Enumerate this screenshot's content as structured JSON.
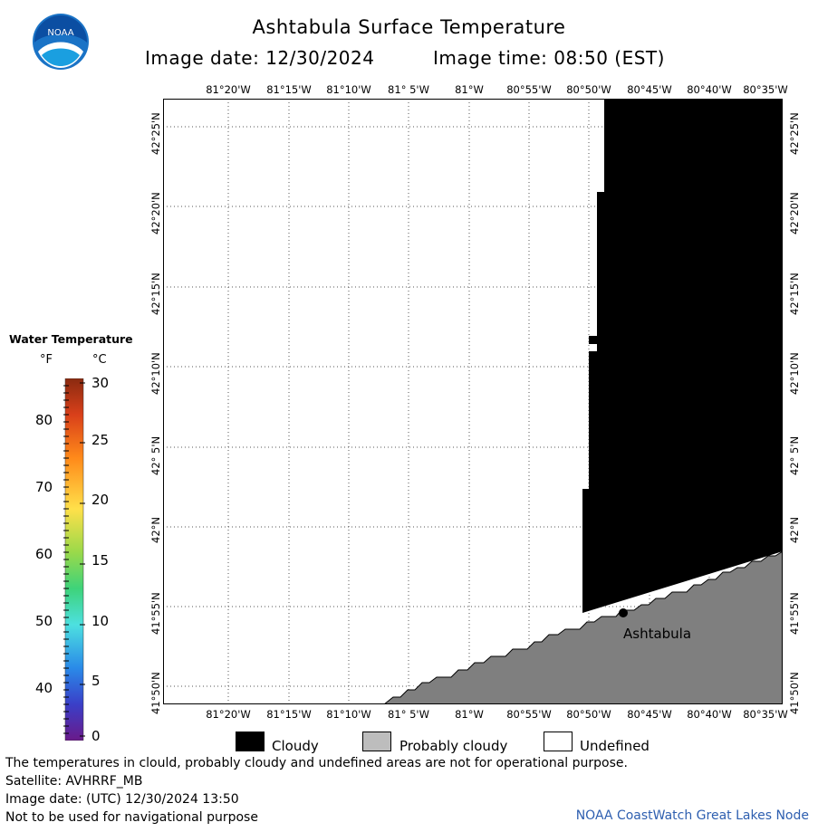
{
  "header": {
    "title": "Ashtabula Surface Temperature",
    "image_date_label": "Image date: 12/30/2024",
    "image_time_label": "Image time: 08:50 (EST)"
  },
  "logo": {
    "text": "NOAA"
  },
  "map": {
    "lon_labels": [
      "81°20'W",
      "81°15'W",
      "81°10'W",
      "81° 5'W",
      "81°W",
      "80°55'W",
      "80°50'W",
      "80°45'W",
      "80°40'W",
      "80°35'W"
    ],
    "lat_labels": [
      "42°25'N",
      "42°20'N",
      "42°15'N",
      "42°10'N",
      "42° 5'N",
      "42°N",
      "41°55'N",
      "41°50'N"
    ],
    "place_label": "Ashtabula",
    "colors": {
      "cloudy": "#000000",
      "probably_cloudy": "#7f7f7f",
      "undefined": "#ffffff"
    }
  },
  "legend": {
    "title": "Water Temperature",
    "unit_f": "°F",
    "unit_c": "°C",
    "f_ticks": [
      "80",
      "70",
      "60",
      "50",
      "40"
    ],
    "c_ticks": [
      "30",
      "25",
      "20",
      "15",
      "10",
      "5",
      "0"
    ]
  },
  "key": {
    "cloudy": "Cloudy",
    "probably_cloudy": "Probably cloudy",
    "undefined": "Undefined"
  },
  "footer": {
    "warning": "The temperatures in clould, probably cloudy and undefined areas are not for operational purpose.",
    "satellite": "Satellite: AVHRRF_MB",
    "utc_date": "Image date: (UTC) 12/30/2024  13:50",
    "navigation": "Not to be used for navigational purpose",
    "credit": "NOAA CoastWatch Great Lakes Node"
  }
}
